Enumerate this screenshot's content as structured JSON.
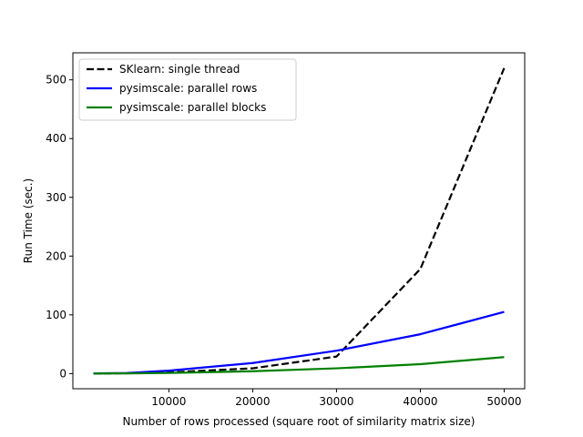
{
  "chart_data": {
    "type": "line",
    "title": "",
    "xlabel": "Number of rows processed (square root of similarity matrix size)",
    "ylabel": "Run Time (sec.)",
    "xlim": [
      -1450,
      52450
    ],
    "ylim": [
      -25.8,
      546
    ],
    "xticks": [
      10000,
      20000,
      30000,
      40000,
      50000
    ],
    "yticks": [
      0,
      100,
      200,
      300,
      400,
      500
    ],
    "grid": false,
    "legend_position": "upper-left",
    "series": [
      {
        "name": "SKlearn: single thread",
        "color": "#000000",
        "style": "dashed",
        "x": [
          1000,
          5000,
          10000,
          20000,
          30000,
          40000,
          50000
        ],
        "y": [
          0.1,
          0.5,
          2.0,
          9.0,
          29.0,
          178.0,
          520.0
        ]
      },
      {
        "name": "pysimscale: parallel rows",
        "color": "#0000ff",
        "style": "solid",
        "x": [
          1000,
          5000,
          10000,
          20000,
          30000,
          40000,
          50000
        ],
        "y": [
          0.3,
          1.0,
          5.0,
          18.0,
          39.0,
          67.0,
          105.0
        ]
      },
      {
        "name": "pysimscale: parallel blocks",
        "color": "#008000",
        "style": "solid",
        "x": [
          1000,
          5000,
          10000,
          20000,
          30000,
          40000,
          50000
        ],
        "y": [
          0.2,
          0.4,
          1.0,
          4.0,
          9.0,
          16.0,
          28.0
        ]
      }
    ]
  }
}
